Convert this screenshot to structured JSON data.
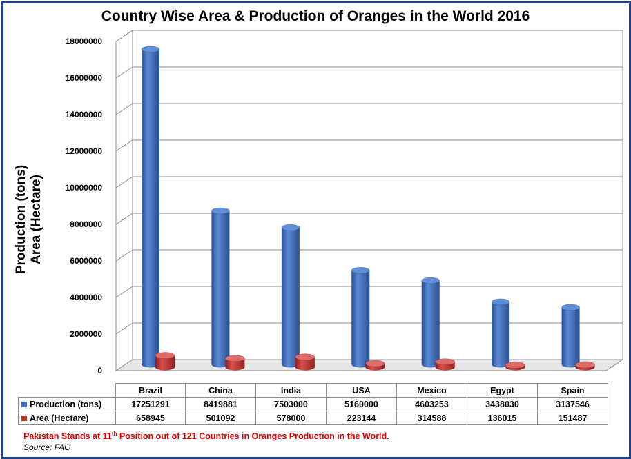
{
  "chart_data": {
    "type": "bar",
    "title": "Country Wise Area & Production of Oranges in the World 2016",
    "ylabel_lines": [
      "Production (tons)",
      "Area (Hectare)"
    ],
    "categories": [
      "Brazil",
      "China",
      "India",
      "USA",
      "Mexico",
      "Egypt",
      "Spain"
    ],
    "series": [
      {
        "name": "Production (tons)",
        "color": "#3f6fbf",
        "values": [
          17251291,
          8419881,
          7503000,
          5160000,
          4603253,
          3438030,
          3137546
        ]
      },
      {
        "name": "Area (Hectare)",
        "color": "#c0392b",
        "values": [
          658945,
          501092,
          578000,
          223144,
          314588,
          136015,
          151487
        ]
      }
    ],
    "ylim": [
      0,
      18000000
    ],
    "yticks": [
      "0",
      "2000000",
      "4000000",
      "6000000",
      "8000000",
      "10000000",
      "12000000",
      "14000000",
      "16000000",
      "18000000"
    ],
    "grid": true,
    "legend": "data-table"
  },
  "note": {
    "before": "Pakistan Stands at 11",
    "sup": "th",
    "after": " Position out of 121 Countries in Oranges Production in the World."
  },
  "source": "Source: FAO"
}
